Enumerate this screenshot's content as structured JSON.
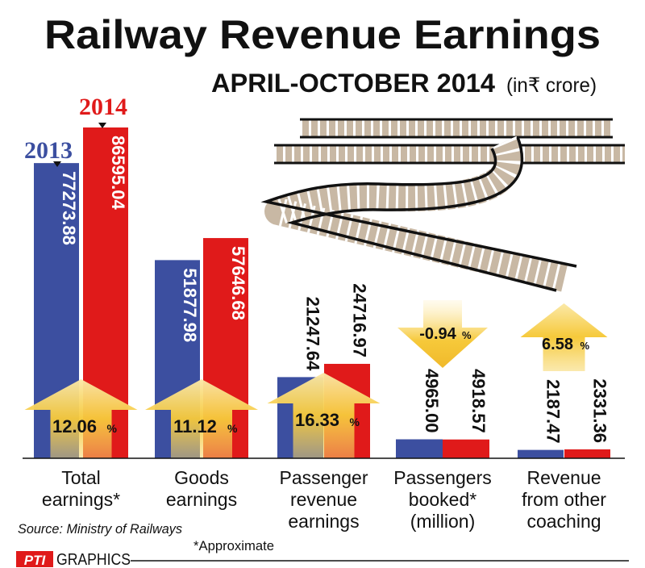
{
  "header": {
    "title": "Railway Revenue Earnings",
    "subtitle": "APRIL-OCTOBER 2014",
    "unit": "(in₹ crore)"
  },
  "legend": {
    "y2013": "2013",
    "y2014": "2014"
  },
  "colors": {
    "y2013": "#3c4fa0",
    "y2014": "#e01a1a",
    "arrow": "#f6c93a",
    "text": "#111111"
  },
  "chart_data": {
    "type": "bar",
    "title": "Railway Revenue Earnings",
    "subtitle": "APRIL-OCTOBER 2014",
    "categories": [
      "Total earnings*",
      "Goods earnings",
      "Passenger revenue earnings",
      "Passengers booked* (million)",
      "Revenue from other coaching"
    ],
    "series": [
      {
        "name": "2013",
        "values": [
          77273.88,
          51877.98,
          21247.64,
          4965.0,
          2187.47
        ],
        "labels": [
          "77273.88",
          "51877.98",
          "21247.64",
          "4965.00",
          "2187.47"
        ]
      },
      {
        "name": "2014",
        "values": [
          86595.04,
          57646.68,
          24716.97,
          4918.57,
          2331.36
        ],
        "labels": [
          "86595.04",
          "57646.68",
          "24716.97",
          "4918.57",
          "2331.36"
        ]
      }
    ],
    "changes": [
      {
        "value": "12.06",
        "unit": "%",
        "direction": "up"
      },
      {
        "value": "11.12",
        "unit": "%",
        "direction": "up"
      },
      {
        "value": "16.33",
        "unit": "%",
        "direction": "up"
      },
      {
        "value": "-0.94",
        "unit": "%",
        "direction": "down"
      },
      {
        "value": "6.58",
        "unit": "%",
        "direction": "up"
      }
    ],
    "category_lines": [
      [
        "Total",
        "earnings*"
      ],
      [
        "Goods",
        "earnings"
      ],
      [
        "Passenger",
        "revenue",
        "earnings"
      ],
      [
        "Passengers",
        "booked*",
        "(million)"
      ],
      [
        "Revenue",
        "from other",
        "coaching"
      ]
    ],
    "legend_position": "top-left",
    "grid": false
  },
  "footer": {
    "source": "Source: Ministry of Railways",
    "note": "*Approximate",
    "credit_logo": "PTI",
    "credit_text": "GRAPHICS"
  }
}
